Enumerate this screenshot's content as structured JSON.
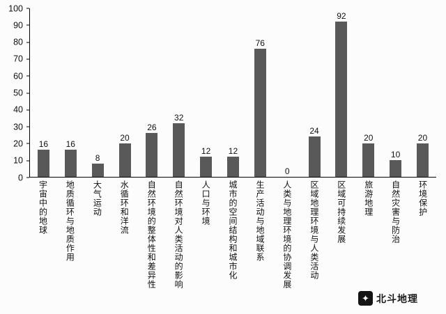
{
  "chart_data": {
    "type": "bar",
    "title": "",
    "xlabel": "",
    "ylabel": "",
    "categories": [
      "宇宙中的地球",
      "地质循环与地质作用",
      "大气运动",
      "水循环和洋流",
      "自然环境的整体性和差异性",
      "自然环境对人类活动的影响",
      "人口与环境",
      "城市的空间结构和城市化",
      "生产活动与地域联系",
      "人类与地理环境的协调发展",
      "区域地理环境与人类活动",
      "区域可持续发展",
      "旅游地理",
      "自然灾害与防治",
      "环境保护"
    ],
    "values": [
      16,
      16,
      8,
      20,
      26,
      32,
      12,
      12,
      76,
      0,
      24,
      92,
      20,
      10,
      20
    ],
    "ylim": [
      0,
      100
    ],
    "yticks": [
      0,
      10,
      20,
      30,
      40,
      50,
      60,
      70,
      80,
      90,
      100
    ],
    "bar_color": "#595959",
    "grid": false,
    "legend_position": "none"
  },
  "watermark": {
    "icon": "beidou-star-icon",
    "icon_glyph": "✦",
    "text": "北斗地理"
  }
}
